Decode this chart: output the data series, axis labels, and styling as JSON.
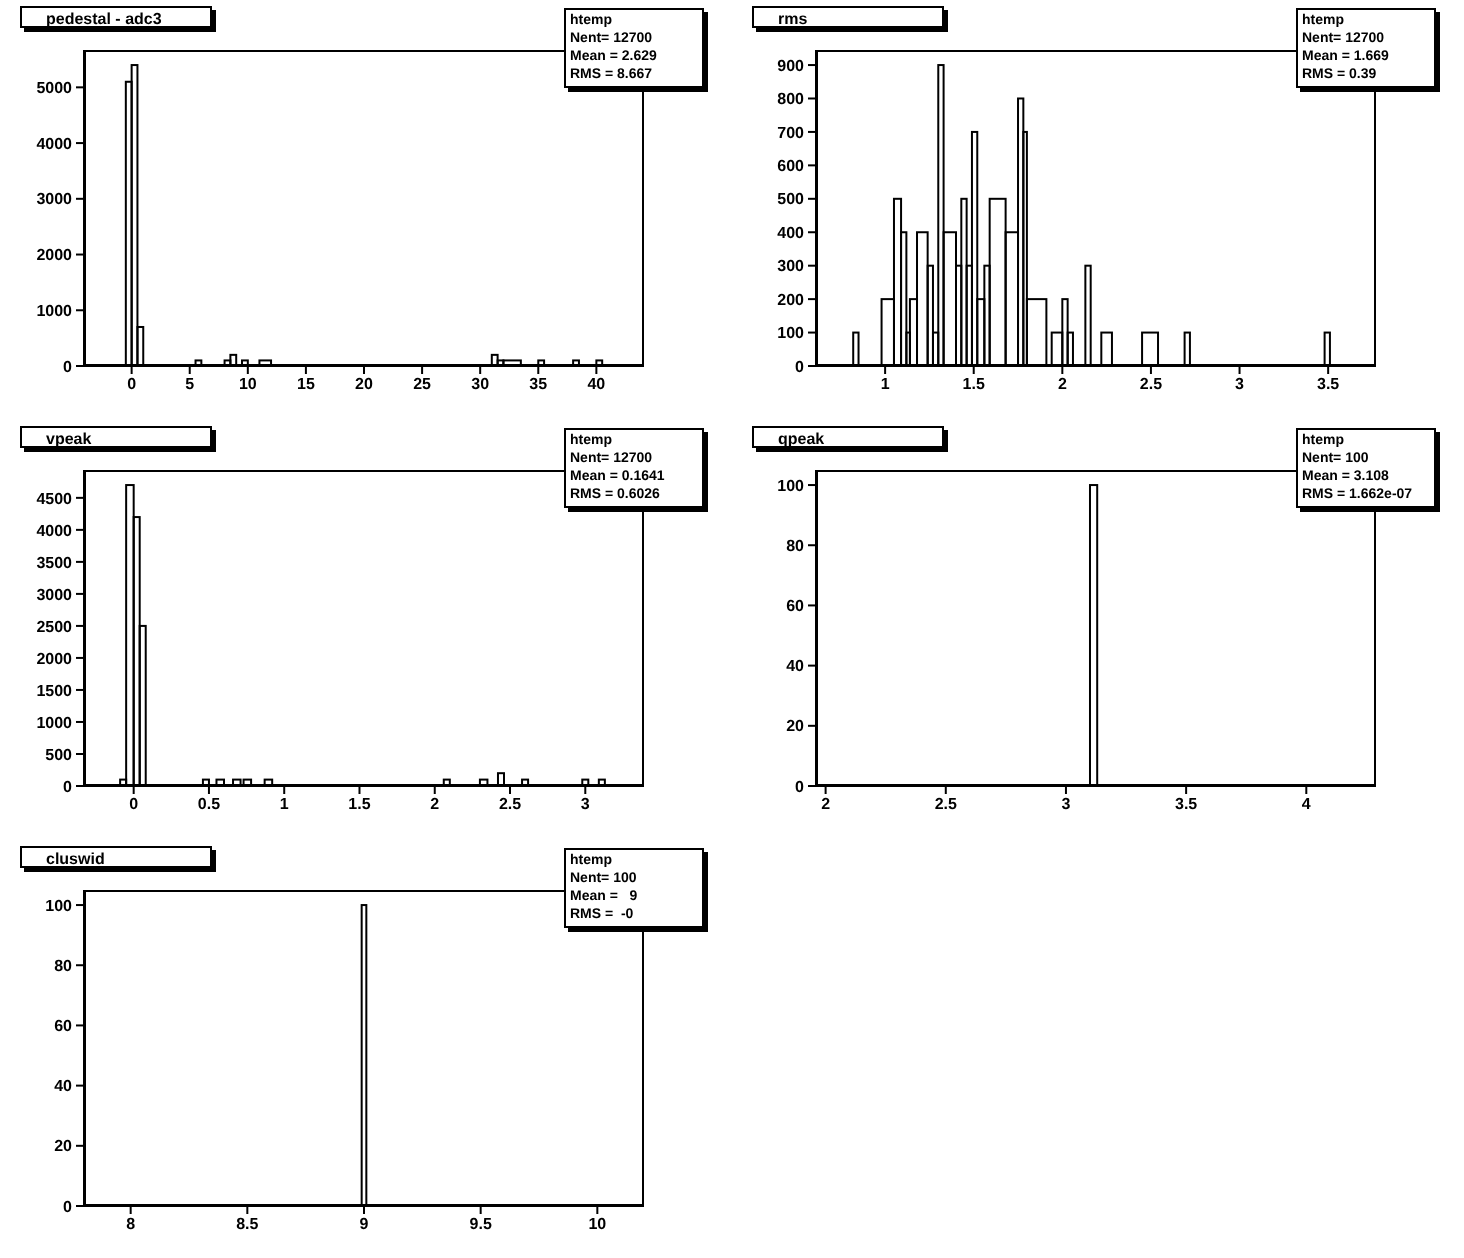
{
  "chart_data": [
    {
      "type": "histogram",
      "title": "pedestal - adc3",
      "color": "#000000",
      "annotations": [
        "htemp",
        "Nent= 12700",
        "Mean = 2.629",
        "RMS = 8.667"
      ],
      "bins": [
        -0.5,
        0,
        0.5,
        1,
        5.5,
        6,
        8,
        8.5,
        9,
        9.5,
        10,
        11,
        12,
        31,
        31.5,
        32,
        33.5,
        35,
        35.5,
        38,
        38.5,
        40,
        40.5
      ],
      "values": [
        5100,
        5400,
        700,
        0,
        100,
        0,
        100,
        200,
        0,
        100,
        0,
        100,
        0,
        200,
        100,
        100,
        0,
        100,
        0,
        100,
        0,
        100
      ],
      "xlim": [
        -4.1,
        44.1
      ],
      "xticks": [
        0,
        5,
        10,
        15,
        20,
        25,
        30,
        35,
        40
      ],
      "ylim": [
        0,
        5670
      ],
      "yticks": [
        0,
        1000,
        2000,
        3000,
        4000,
        5000
      ]
    },
    {
      "type": "histogram",
      "title": "rms",
      "color": "#000000",
      "annotations": [
        "htemp",
        "Nent= 12700",
        "Mean = 1.669",
        "RMS = 0.39"
      ],
      "bins": [
        0.82,
        0.85,
        0.98,
        1.05,
        1.09,
        1.12,
        1.14,
        1.18,
        1.24,
        1.27,
        1.3,
        1.33,
        1.4,
        1.43,
        1.46,
        1.49,
        1.52,
        1.56,
        1.59,
        1.68,
        1.75,
        1.78,
        1.8,
        1.91,
        1.94,
        2,
        2.03,
        2.06,
        2.13,
        2.16,
        2.22,
        2.28,
        2.45,
        2.54,
        2.69,
        2.72,
        3.48,
        3.51
      ],
      "values": [
        100,
        0,
        200,
        500,
        400,
        100,
        200,
        400,
        300,
        100,
        900,
        400,
        300,
        500,
        300,
        700,
        200,
        300,
        500,
        400,
        800,
        700,
        200,
        0,
        100,
        200,
        100,
        0,
        300,
        0,
        100,
        0,
        100,
        0,
        100,
        0,
        100
      ],
      "xlim": [
        0.61,
        3.77
      ],
      "xticks": [
        1,
        1.5,
        2,
        2.5,
        3,
        3.5
      ],
      "ylim": [
        0,
        945
      ],
      "yticks": [
        0,
        100,
        200,
        300,
        400,
        500,
        600,
        700,
        800,
        900
      ]
    },
    {
      "type": "histogram",
      "title": "vpeak",
      "color": "#000000",
      "annotations": [
        "htemp",
        "Nent= 12700",
        "Mean = 0.1641",
        "RMS = 0.6026"
      ],
      "bins": [
        -0.09,
        -0.05,
        0,
        0.04,
        0.08,
        0.46,
        0.5,
        0.55,
        0.6,
        0.66,
        0.71,
        0.73,
        0.78,
        0.87,
        0.92,
        2.06,
        2.1,
        2.3,
        2.35,
        2.42,
        2.46,
        2.58,
        2.62,
        2.98,
        3.02,
        3.09,
        3.13
      ],
      "values": [
        100,
        4700,
        4200,
        2500,
        0,
        100,
        0,
        100,
        0,
        100,
        0,
        100,
        0,
        100,
        0,
        100,
        0,
        100,
        0,
        200,
        0,
        100,
        0,
        100,
        0,
        100
      ],
      "xlim": [
        -0.33,
        3.39
      ],
      "xticks": [
        0,
        0.5,
        1,
        1.5,
        2,
        2.5,
        3
      ],
      "ylim": [
        0,
        4935
      ],
      "yticks": [
        0,
        500,
        1000,
        1500,
        2000,
        2500,
        3000,
        3500,
        4000,
        4500
      ]
    },
    {
      "type": "histogram",
      "title": "qpeak",
      "color": "#000000",
      "annotations": [
        "htemp",
        "Nent= 100",
        "Mean = 3.108",
        "RMS = 1.662e-07"
      ],
      "bins": [
        3.1,
        3.13
      ],
      "values": [
        100
      ],
      "xlim": [
        1.96,
        4.29
      ],
      "xticks": [
        2,
        2.5,
        3,
        3.5,
        4
      ],
      "ylim": [
        0,
        105
      ],
      "yticks": [
        0,
        20,
        40,
        60,
        80,
        100
      ]
    },
    {
      "type": "histogram",
      "title": "cluswid",
      "color": "#000000",
      "annotations": [
        "htemp",
        "Nent= 100",
        "Mean =   9",
        "RMS =  -0"
      ],
      "bins": [
        8.99,
        9.01
      ],
      "values": [
        100
      ],
      "xlim": [
        7.8,
        10.2
      ],
      "xticks": [
        8,
        8.5,
        9,
        9.5,
        10
      ],
      "ylim": [
        0,
        105
      ],
      "yticks": [
        0,
        20,
        40,
        60,
        80,
        100
      ]
    }
  ]
}
